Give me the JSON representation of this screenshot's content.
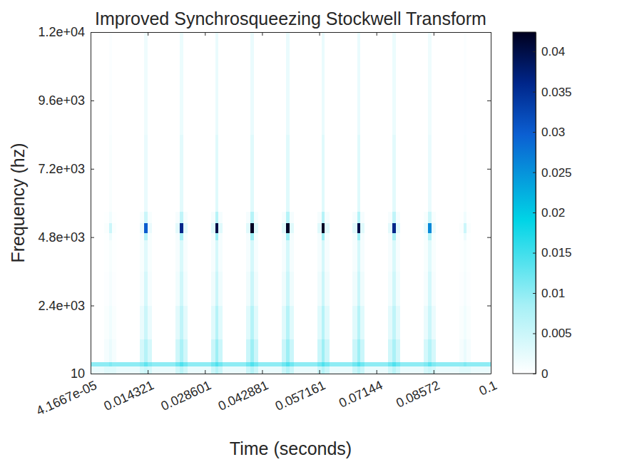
{
  "chart_data": {
    "type": "heatmap",
    "title": "Improved Synchrosqueezing Stockwell Transform",
    "x_label": "Time (seconds)",
    "y_label": "Frequency (hz)",
    "xlim": [
      4.1667e-05,
      0.1
    ],
    "ylim": [
      10,
      12000
    ],
    "xticks": [
      {
        "value": 4.1667e-05,
        "label": "4.1667e-05"
      },
      0.014321,
      0.028601,
      0.042881,
      0.057161,
      0.07144,
      0.08572,
      0.1
    ],
    "yticks": [
      10,
      {
        "value": 2400,
        "label": "2.4e+03"
      },
      {
        "value": 4800,
        "label": "4.8e+03"
      },
      {
        "value": 7200,
        "label": "7.2e+03"
      },
      {
        "value": 9600,
        "label": "9.6e+03"
      },
      {
        "value": 12000,
        "label": "1.2e+04"
      }
    ],
    "time_edges": [
      4.1667e-05,
      0.0035,
      0.0046,
      0.0054,
      0.0065,
      0.01236,
      0.01346,
      0.01426,
      0.01536,
      0.02122,
      0.02232,
      0.02312,
      0.02422,
      0.03008,
      0.03118,
      0.03198,
      0.03308,
      0.03894,
      0.04004,
      0.04084,
      0.04194,
      0.0478,
      0.0489,
      0.0497,
      0.0508,
      0.05666,
      0.05776,
      0.05856,
      0.05966,
      0.06552,
      0.06662,
      0.06742,
      0.06852,
      0.07438,
      0.07548,
      0.07628,
      0.07738,
      0.08324,
      0.08434,
      0.08514,
      0.08624,
      0.0921,
      0.0932,
      0.094,
      0.0951,
      0.1
    ],
    "frequency_edges": [
      10,
      250,
      400,
      1200,
      2400,
      3600,
      4700,
      4950,
      5300,
      5700,
      8400,
      12000
    ],
    "cells": [
      [
        0.002,
        0.003,
        0.003,
        0.003,
        0.002,
        0.004,
        0.005,
        0.004,
        0.002,
        0.0045,
        0.0065,
        0.0045,
        0.002,
        0.005,
        0.007,
        0.005,
        0.002,
        0.005,
        0.007,
        0.005,
        0.002,
        0.005,
        0.007,
        0.005,
        0.002,
        0.005,
        0.007,
        0.005,
        0.002,
        0.005,
        0.007,
        0.005,
        0.002,
        0.0045,
        0.0065,
        0.0045,
        0.002,
        0.004,
        0.005,
        0.004,
        0.002,
        0.003,
        0.003,
        0.003,
        0.002
      ],
      [
        0.01,
        0.01,
        0.011,
        0.01,
        0.01,
        0.011,
        0.013,
        0.011,
        0.01,
        0.012,
        0.014,
        0.012,
        0.01,
        0.012,
        0.014,
        0.012,
        0.01,
        0.012,
        0.014,
        0.012,
        0.01,
        0.012,
        0.014,
        0.012,
        0.01,
        0.012,
        0.014,
        0.012,
        0.01,
        0.012,
        0.014,
        0.012,
        0.01,
        0.012,
        0.014,
        0.012,
        0.01,
        0.011,
        0.013,
        0.011,
        0.01,
        0.01,
        0.011,
        0.01,
        0.01
      ],
      [
        0,
        0.001,
        0.002,
        0.001,
        0,
        0.004,
        0.007,
        0.004,
        0,
        0.0045,
        0.008,
        0.0045,
        0,
        0.005,
        0.009,
        0.005,
        0,
        0.005,
        0.009,
        0.005,
        0,
        0.005,
        0.009,
        0.005,
        0,
        0.005,
        0.009,
        0.005,
        0,
        0.005,
        0.009,
        0.005,
        0,
        0.0045,
        0.008,
        0.0045,
        0,
        0.004,
        0.007,
        0.004,
        0,
        0.001,
        0.002,
        0.001,
        0
      ],
      [
        0,
        0.0006,
        0.0014,
        0.0006,
        0,
        0.002,
        0.005,
        0.002,
        0,
        0.0027,
        0.006,
        0.0027,
        0,
        0.003,
        0.007,
        0.003,
        0,
        0.003,
        0.007,
        0.003,
        0,
        0.003,
        0.007,
        0.003,
        0,
        0.003,
        0.007,
        0.003,
        0,
        0.003,
        0.007,
        0.003,
        0,
        0.0027,
        0.006,
        0.0027,
        0,
        0.002,
        0.005,
        0.002,
        0,
        0.0006,
        0.0014,
        0.0006,
        0
      ],
      [
        0,
        0.0003,
        0.001,
        0.0003,
        0,
        0.001,
        0.004,
        0.001,
        0,
        0.0013,
        0.0045,
        0.0013,
        0,
        0.0015,
        0.005,
        0.0015,
        0,
        0.0015,
        0.005,
        0.0015,
        0,
        0.0015,
        0.005,
        0.0015,
        0,
        0.0015,
        0.005,
        0.0015,
        0,
        0.0015,
        0.005,
        0.0015,
        0,
        0.0013,
        0.0045,
        0.0013,
        0,
        0.001,
        0.004,
        0.001,
        0,
        0.0003,
        0.001,
        0.0003,
        0
      ],
      [
        0,
        0.0002,
        0.0008,
        0.0002,
        0,
        0.0008,
        0.003,
        0.0008,
        0,
        0.0009,
        0.0036,
        0.0009,
        0,
        0.001,
        0.004,
        0.001,
        0,
        0.001,
        0.004,
        0.001,
        0,
        0.001,
        0.004,
        0.001,
        0,
        0.001,
        0.004,
        0.001,
        0,
        0.001,
        0.004,
        0.001,
        0,
        0.0009,
        0.0036,
        0.0009,
        0,
        0.0008,
        0.003,
        0.0008,
        0,
        0.0002,
        0.0008,
        0.0002,
        0
      ],
      [
        0,
        0.0002,
        0.0018,
        0.0002,
        0,
        0.0008,
        0.007,
        0.0008,
        0,
        0.0009,
        0.008,
        0.0009,
        0,
        0.001,
        0.009,
        0.001,
        0,
        0.001,
        0.009,
        0.001,
        0,
        0.001,
        0.009,
        0.001,
        0,
        0.001,
        0.009,
        0.001,
        0,
        0.001,
        0.009,
        0.001,
        0,
        0.0009,
        0.008,
        0.0009,
        0,
        0.0008,
        0.007,
        0.0008,
        0,
        0.0002,
        0.0018,
        0.0002,
        0
      ],
      [
        0,
        0.0006,
        0.005,
        0.0006,
        0,
        0.002,
        0.03,
        0.002,
        0,
        0.0027,
        0.036,
        0.0027,
        0,
        0.003,
        0.04,
        0.003,
        0,
        0.003,
        0.042,
        0.003,
        0,
        0.003,
        0.042,
        0.003,
        0,
        0.003,
        0.042,
        0.003,
        0,
        0.003,
        0.04,
        0.003,
        0,
        0.0027,
        0.036,
        0.0027,
        0,
        0.002,
        0.026,
        0.002,
        0,
        0.0006,
        0.005,
        0.0006,
        0
      ],
      [
        0,
        0.0002,
        0.0014,
        0.0002,
        0,
        0.0008,
        0.005,
        0.0008,
        0,
        0.0009,
        0.006,
        0.0009,
        0,
        0.001,
        0.007,
        0.001,
        0,
        0.001,
        0.007,
        0.001,
        0,
        0.001,
        0.007,
        0.001,
        0,
        0.001,
        0.007,
        0.001,
        0,
        0.001,
        0.007,
        0.001,
        0,
        0.0009,
        0.006,
        0.0009,
        0,
        0.0008,
        0.005,
        0.0008,
        0,
        0.0002,
        0.0014,
        0.0002,
        0
      ],
      [
        0,
        0,
        0.0006,
        0,
        0,
        0,
        0.002,
        0,
        0,
        0,
        0.0027,
        0,
        0,
        0,
        0.003,
        0,
        0,
        0,
        0.003,
        0,
        0,
        0,
        0.003,
        0,
        0,
        0,
        0.003,
        0,
        0,
        0,
        0.003,
        0,
        0,
        0,
        0.0027,
        0,
        0,
        0,
        0.002,
        0,
        0,
        0,
        0.0006,
        0,
        0
      ],
      [
        0,
        0,
        0.0004,
        0,
        0,
        0,
        0.0015,
        0,
        0,
        0,
        0.0018,
        0,
        0,
        0,
        0.002,
        0,
        0,
        0,
        0.002,
        0,
        0,
        0,
        0.002,
        0,
        0,
        0,
        0.002,
        0,
        0,
        0,
        0.002,
        0,
        0,
        0,
        0.0018,
        0,
        0,
        0,
        0.0015,
        0,
        0,
        0,
        0.0004,
        0,
        0
      ]
    ],
    "colorbar": {
      "range": [
        0,
        0.0424
      ],
      "ticks": [
        0,
        0.005,
        0.01,
        0.015,
        0.02,
        0.025,
        0.03,
        0.035,
        0.04
      ]
    }
  }
}
